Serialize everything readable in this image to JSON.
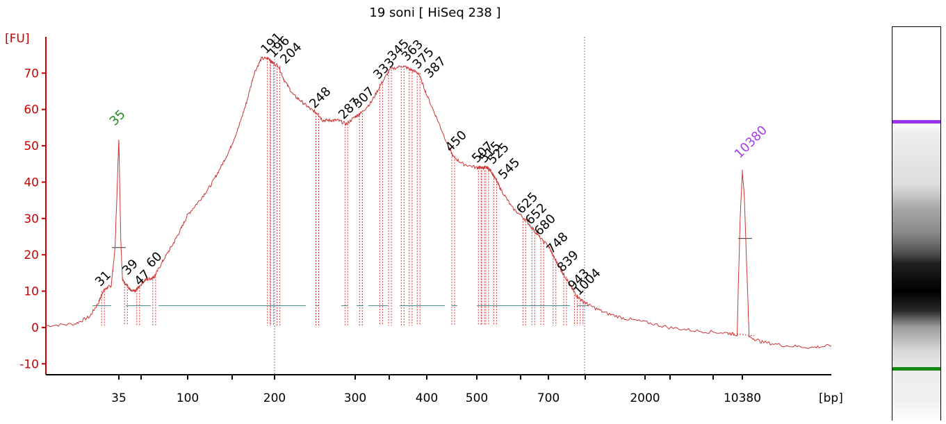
{
  "chart_data": {
    "type": "line",
    "title": "19 soni  [ HiSeq 238 ]",
    "ylabel": "[FU]",
    "xlabel": "[bp]",
    "ylim": [
      -13,
      80
    ],
    "y_ticks": [
      -10,
      0,
      10,
      20,
      30,
      40,
      50,
      60,
      70
    ],
    "x_ticks": [
      "35",
      "100",
      "200",
      "300",
      "400",
      "500",
      "700",
      "2000",
      "10380"
    ],
    "x_tick_values": [
      35,
      100,
      200,
      300,
      400,
      500,
      700,
      2000,
      10380
    ],
    "series": [
      {
        "color": "#cc3333",
        "x": [
          20,
          25,
          28,
          30,
          31,
          32,
          33,
          34,
          35,
          36,
          37,
          39,
          42,
          45,
          47,
          52,
          57,
          60,
          62,
          70,
          80,
          90,
          100,
          110,
          120,
          130,
          140,
          150,
          160,
          170,
          180,
          191,
          196,
          204,
          210,
          220,
          230,
          240,
          248,
          255,
          265,
          275,
          287,
          300,
          307,
          320,
          333,
          345,
          363,
          375,
          387,
          400,
          420,
          440,
          450,
          470,
          500,
          507,
          515,
          525,
          535,
          545,
          560,
          590,
          625,
          652,
          680,
          720,
          748,
          800,
          839,
          900,
          943,
          1004,
          1100,
          1300,
          1600,
          2000,
          3000,
          5000,
          8000,
          9500,
          10000,
          10380,
          10700,
          11500,
          14000,
          20000,
          30000,
          40000
        ],
        "y": [
          0.5,
          1,
          3,
          7,
          10,
          11,
          11.5,
          22,
          52,
          25,
          13,
          12,
          10,
          10,
          11,
          13,
          13.5,
          14,
          15,
          19,
          23,
          27,
          31,
          35,
          39,
          44,
          49,
          55,
          62,
          70,
          74,
          74,
          73,
          72,
          68,
          64,
          62,
          60,
          59,
          57,
          57,
          57,
          56,
          58,
          59,
          62,
          67,
          71,
          72,
          71,
          70,
          64,
          57,
          50,
          47,
          45,
          44,
          44,
          44,
          44,
          43,
          41,
          38,
          33,
          30,
          27,
          24,
          21,
          19,
          16,
          14,
          11,
          9,
          7.5,
          6,
          4,
          2.5,
          1.5,
          0,
          -1,
          -1.5,
          -2,
          30,
          43,
          36,
          -2.5,
          -4,
          -5,
          -5.5,
          -5
        ],
        "peak_labels": [
          "31",
          "35",
          "39",
          "47",
          "60",
          "191",
          "196",
          "204",
          "248",
          "287",
          "307",
          "333",
          "345",
          "363",
          "375",
          "387",
          "450",
          "507",
          "515",
          "525",
          "545",
          "625",
          "652",
          "680",
          "748",
          "839",
          "943",
          "1004",
          "10380"
        ]
      }
    ],
    "marker_labels": [
      "35",
      "10380"
    ],
    "colors": {
      "axis": "#cc0000",
      "trace": "#cc3333",
      "lower_marker": "#1f8a1f",
      "upper_marker": "#a040e8",
      "baseline": "#4a8a8a"
    },
    "grid": false
  },
  "gel": {
    "upper_marker_color": "#9933ee",
    "lower_marker_color": "#118811"
  }
}
